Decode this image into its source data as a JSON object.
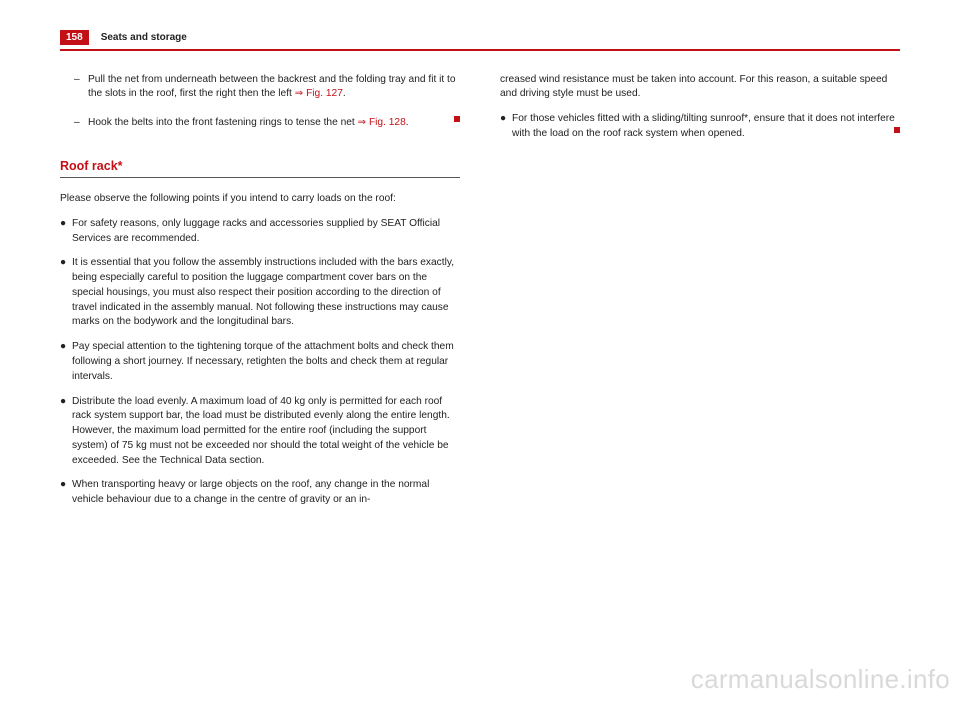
{
  "colors": {
    "accent": "#c31016",
    "text": "#222222",
    "watermark": "#d9d9d9",
    "underline": "#555555",
    "background": "#ffffff"
  },
  "typography": {
    "body_fontsize_pt": 10.2,
    "heading_fontsize_pt": 12.5,
    "header_fontsize_pt": 10,
    "line_height": 1.45
  },
  "header": {
    "page_number": "158",
    "section": "Seats and storage"
  },
  "left_column": {
    "dash_items": [
      {
        "text_a": "Pull the net from underneath between the backrest and the folding tray and fit it to the slots in the roof, first the right then the left ",
        "link": "⇒ Fig. 127",
        "text_b": "."
      },
      {
        "text_a": "Hook the belts into the front fastening rings to tense the net ",
        "link": "⇒ Fig. 128",
        "text_b": ".",
        "end_square": true
      }
    ],
    "heading": "Roof rack*",
    "intro": "Please observe the following points if you intend to carry loads on the roof:",
    "bullets": [
      "For safety reasons, only luggage racks and accessories supplied by SEAT Official Services are recommended.",
      "It is essential that you follow the assembly instructions included with the bars exactly, being especially careful to position the luggage compartment cover bars on the special housings, you must also respect their position according to the direction of travel indicated in the assembly manual. Not following these instructions may cause marks on the bodywork and the longitudinal bars.",
      "Pay special attention to the tightening torque of the attachment bolts and check them following a short journey. If necessary, retighten the bolts and check them at regular intervals.",
      "Distribute the load evenly. A maximum load of 40 kg only is permitted for each roof rack system support bar, the load must be distributed evenly along the entire length. However, the maximum load permitted for the entire roof (including the support system) of 75 kg must not be exceeded nor should the total weight of the vehicle be exceeded. See the Technical Data section.",
      "When transporting heavy or large objects on the roof, any change in the normal vehicle behaviour due to a change in the centre of gravity or an in-"
    ]
  },
  "right_column": {
    "continuation": "creased wind resistance must be taken into account. For this reason, a suitable speed and driving style must be used.",
    "bullets": [
      {
        "text": "For those vehicles fitted with a sliding/tilting sunroof*, ensure that it does not interfere with the load on the roof rack system when opened.",
        "end_square": true
      }
    ]
  },
  "watermark": "carmanualsonline.info"
}
